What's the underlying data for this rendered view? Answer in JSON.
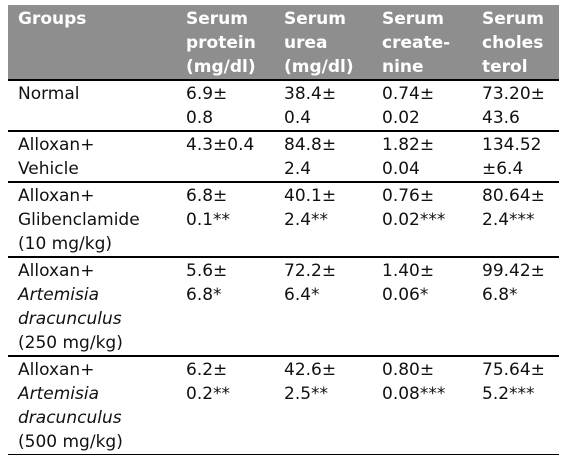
{
  "table": {
    "headers": [
      "Groups",
      "Serum\nprotein\n(mg/dl)",
      "Serum\nurea\n(mg/dl)",
      "Serum\ncreate-\nnine",
      "Serum\ncholes\nterol"
    ],
    "rows": [
      {
        "group_lines": [
          "Normal"
        ],
        "values": [
          "6.9±\n0.8",
          "38.4±\n0.4",
          "0.74±\n0.02",
          "73.20±\n43.6"
        ]
      },
      {
        "group_lines": [
          "Alloxan+",
          "Vehicle"
        ],
        "values": [
          "4.3±0.4",
          "84.8±\n2.4",
          "1.82±\n0.04",
          "134.52\n±6.4"
        ]
      },
      {
        "group_lines": [
          "Alloxan+",
          "Glibenclamide",
          "(10 mg/kg)"
        ],
        "values": [
          "6.8±\n0.1**",
          "40.1±\n2.4**",
          "0.76±\n0.02***",
          "80.64±\n2.4***"
        ]
      },
      {
        "group_lines": [
          "Alloxan+",
          "Artemisia",
          "dracunculus",
          "(250 mg/kg)"
        ],
        "values": [
          "5.6±\n6.8*",
          "72.2±\n6.4*",
          "1.40±\n0.06*",
          "99.42±\n6.8*"
        ]
      },
      {
        "group_lines": [
          "Alloxan+",
          "Artemisia",
          "dracunculus",
          "(500 mg/kg)"
        ],
        "values": [
          "6.2±\n0.2**",
          "42.6±\n2.5**",
          "0.80±\n0.08***",
          "75.64±\n5.2***"
        ]
      }
    ]
  }
}
